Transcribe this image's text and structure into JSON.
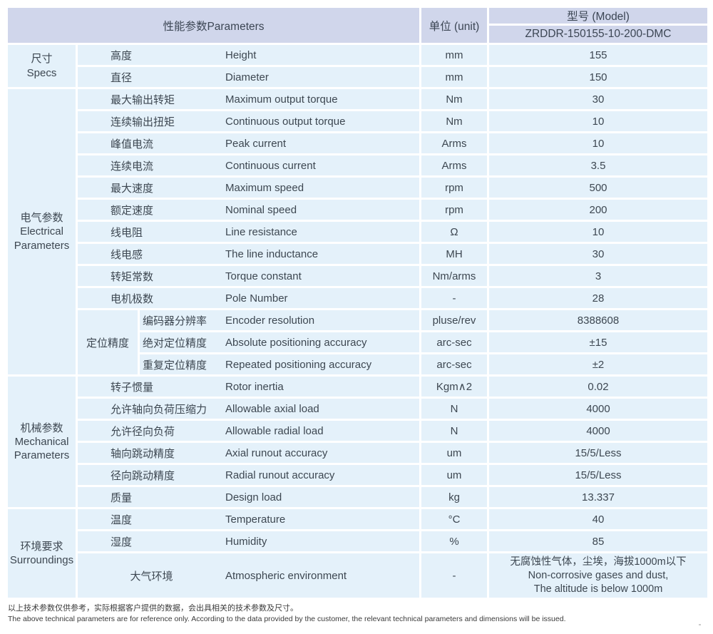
{
  "header": {
    "parameters_label": "性能参数Parameters",
    "unit_label": "单位 (unit)",
    "model_label": "型号 (Model)",
    "model_value": "ZRDDR-150155-10-200-DMC"
  },
  "colors": {
    "header_bg": "#d0d6eb",
    "row_bg": "#e4f1fa",
    "text": "#3d4751"
  },
  "groups": [
    {
      "cn": "尺寸",
      "en": "Specs",
      "rows": [
        {
          "cn": "高度",
          "en": "Height",
          "unit": "mm",
          "value": "155"
        },
        {
          "cn": "直径",
          "en": "Diameter",
          "unit": "mm",
          "value": "150"
        }
      ]
    },
    {
      "cn": "电气参数",
      "en": "Electrical Parameters",
      "rows": [
        {
          "cn": "最大输出转矩",
          "en": "Maximum output torque",
          "unit": "Nm",
          "value": "30"
        },
        {
          "cn": "连续输出扭矩",
          "en": "Continuous output torque",
          "unit": "Nm",
          "value": "10"
        },
        {
          "cn": "峰值电流",
          "en": "Peak current",
          "unit": "Arms",
          "value": "10"
        },
        {
          "cn": "连续电流",
          "en": "Continuous current",
          "unit": "Arms",
          "value": "3.5"
        },
        {
          "cn": "最大速度",
          "en": "Maximum speed",
          "unit": "rpm",
          "value": "500"
        },
        {
          "cn": "额定速度",
          "en": "Nominal speed",
          "unit": "rpm",
          "value": "200"
        },
        {
          "cn": "线电阻",
          "en": "Line resistance",
          "unit": "Ω",
          "value": "10"
        },
        {
          "cn": "线电感",
          "en": "The line inductance",
          "unit": "MH",
          "value": "30"
        },
        {
          "cn": "转矩常数",
          "en": "Torque constant",
          "unit": "Nm/arms",
          "value": "3"
        },
        {
          "cn": "电机极数",
          "en": "Pole Number",
          "unit": "-",
          "value": "28"
        }
      ],
      "subgroup": {
        "cn": "定位精度",
        "rows": [
          {
            "cn": "编码器分辨率",
            "en": "Encoder resolution",
            "unit": "pluse/rev",
            "value": "8388608"
          },
          {
            "cn": "绝对定位精度",
            "en": "Absolute positioning accuracy",
            "unit": "arc-sec",
            "value": "±15"
          },
          {
            "cn": "重复定位精度",
            "en": "Repeated positioning accuracy",
            "unit": "arc-sec",
            "value": "±2"
          }
        ]
      }
    },
    {
      "cn": "机械参数",
      "en": "Mechanical Parameters",
      "rows": [
        {
          "cn": "转子惯量",
          "en": "Rotor inertia",
          "unit": "Kgm∧2",
          "value": "0.02"
        },
        {
          "cn": "允许轴向负荷压缩力",
          "en": "Allowable axial load",
          "unit": "N",
          "value": "4000"
        },
        {
          "cn": "允许径向负荷",
          "en": "Allowable radial load",
          "unit": "N",
          "value": "4000"
        },
        {
          "cn": "轴向跳动精度",
          "en": "Axial runout accuracy",
          "unit": "um",
          "value": "15/5/Less"
        },
        {
          "cn": "径向跳动精度",
          "en": "Radial runout accuracy",
          "unit": "um",
          "value": "15/5/Less"
        },
        {
          "cn": "质量",
          "en": "Design load",
          "unit": "kg",
          "value": "13.337"
        }
      ]
    },
    {
      "cn": "环境要求",
      "en": "Surroundings",
      "rows": [
        {
          "cn": "温度",
          "en": "Temperature",
          "unit": "°C",
          "value": "40"
        },
        {
          "cn": "湿度",
          "en": "Humidity",
          "unit": "%",
          "value": "85"
        },
        {
          "cn": "大气环境",
          "en": "Atmospheric environment",
          "unit": "-",
          "center_cn": true,
          "value_lines": [
            "无腐蚀性气体，尘埃，海拔1000m以下",
            "Non-corrosive gases and dust,",
            "The altitude is below 1000m"
          ]
        }
      ]
    }
  ],
  "footnote": {
    "cn": "以上技术参数仅供参考，实际根据客户提供的数据，会出具相关的技术参数及尺寸。",
    "en": "The above technical parameters are for reference only. According to the data provided by the customer, the relevant technical parameters and dimensions will be issued."
  }
}
